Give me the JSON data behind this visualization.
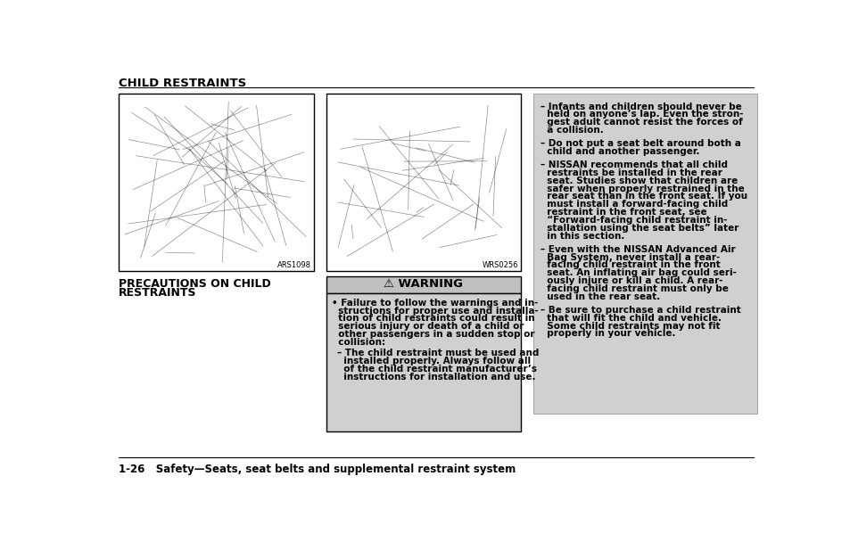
{
  "title": "CHILD RESTRAINTS",
  "page_footer": "1-26   Safety—Seats, seat belts and supplemental restraint system",
  "img1_label": "ARS1098",
  "img2_label": "WRS0256",
  "img1_caption_line1": "PRECAUTIONS ON CHILD",
  "img1_caption_line2": "RESTRAINTS",
  "warning_title": "⚠ WARNING",
  "warning_bullet": "Failure to follow the warnings and instructions for proper use and installation of child restraints could result in serious injury or death of a child or other passengers in a sudden stop or collision:",
  "warning_sub": "The child restraint must be used and installed properly. Always follow all of the child restraint manufacturer’s instructions for installation and use.",
  "right_bullets": [
    "Infants and children should never be held on anyone’s lap. Even the strongest adult cannot resist the forces of a collision.",
    "Do not put a seat belt around both a child and another passenger.",
    "NISSAN recommends that all child restraints be installed in the rear seat. Studies show that children are safer when properly restrained in the rear seat than in the front seat. If you must install a forward-facing child restraint in the front seat, see “Forward-facing child restraint installation using the seat belts” later in this section.",
    "Even with the NISSAN Advanced Air Bag System, never install a rear-facing child restraint in the front seat. An inflating air bag could seriously injure or kill a child. A rear-facing child restraint must only be used in the rear seat.",
    "Be sure to purchase a child restraint that will fit the child and vehicle. Some child restraints may not fit properly in your vehicle."
  ],
  "bg_color": "#ffffff",
  "gray_bg": "#d0d0d0",
  "warning_bg": "#c0c0c0",
  "border_color": "#000000",
  "text_color": "#000000"
}
